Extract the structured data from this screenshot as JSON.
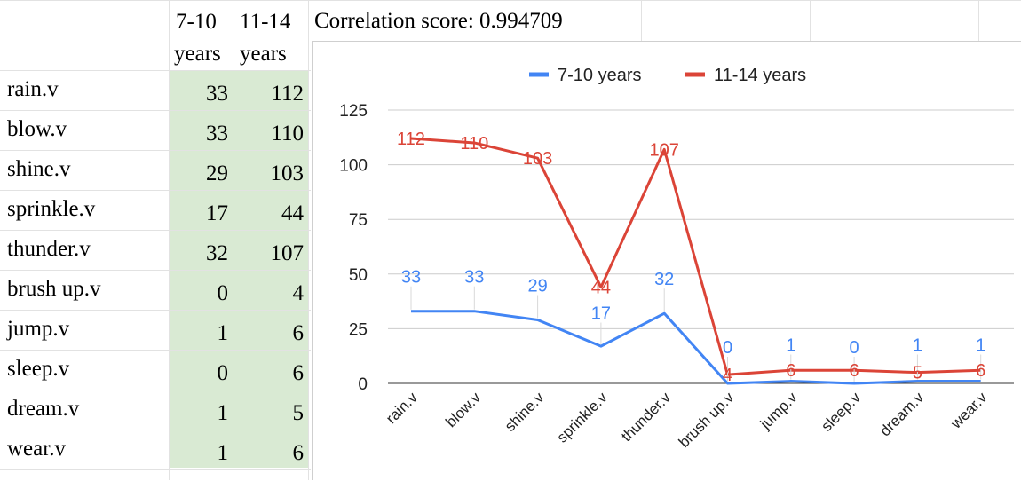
{
  "sheet": {
    "headers": [
      [
        "7-10",
        "years"
      ],
      [
        "11-14",
        "years"
      ]
    ],
    "correlation_text": "Correlation score: 0.994709",
    "rows": [
      {
        "word": "rain.v",
        "a": "33",
        "b": "112"
      },
      {
        "word": "blow.v",
        "a": "33",
        "b": "110"
      },
      {
        "word": "shine.v",
        "a": "29",
        "b": "103"
      },
      {
        "word": "sprinkle.v",
        "a": "17",
        "b": "44"
      },
      {
        "word": "thunder.v",
        "a": "32",
        "b": "107"
      },
      {
        "word": "brush up.v",
        "a": "0",
        "b": "4"
      },
      {
        "word": "jump.v",
        "a": "1",
        "b": "6"
      },
      {
        "word": "sleep.v",
        "a": "0",
        "b": "6"
      },
      {
        "word": "dream.v",
        "a": "1",
        "b": "5"
      },
      {
        "word": "wear.v",
        "a": "1",
        "b": "6"
      }
    ]
  },
  "chart_data": {
    "type": "line",
    "categories": [
      "rain.v",
      "blow.v",
      "shine.v",
      "sprinkle.v",
      "thunder.v",
      "brush up.v",
      "jump.v",
      "sleep.v",
      "dream.v",
      "wear.v"
    ],
    "series": [
      {
        "name": "7-10 years",
        "color": "#4285f4",
        "values": [
          33,
          33,
          29,
          17,
          32,
          0,
          1,
          0,
          1,
          1
        ]
      },
      {
        "name": "11-14 years",
        "color": "#db4437",
        "values": [
          112,
          110,
          103,
          44,
          107,
          4,
          6,
          6,
          5,
          6
        ]
      }
    ],
    "yticks": [
      0,
      25,
      50,
      75,
      100,
      125
    ],
    "ylim": [
      0,
      125
    ],
    "grid": true,
    "legend": "top",
    "data_labels": true
  }
}
